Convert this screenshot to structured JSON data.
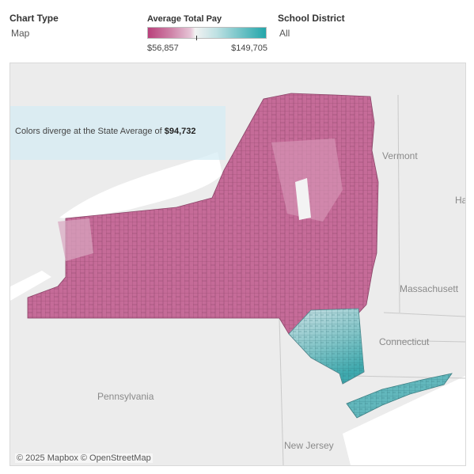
{
  "chart_type": {
    "title": "Chart Type",
    "value": "Map"
  },
  "legend": {
    "title": "Average Total Pay",
    "min_label": "$56,857",
    "max_label": "$149,705",
    "min": 56857,
    "max": 149705,
    "midpoint": 94732,
    "colors": {
      "low": "#b9407b",
      "mid": "#f2f2f2",
      "high": "#24a6aa"
    }
  },
  "school_district": {
    "title": "School District",
    "value": "All"
  },
  "map": {
    "callout_prefix": "Colors diverge at the State Average of ",
    "callout_value": "$94,732",
    "labels": {
      "vermont": "Vermont",
      "massachusetts": "Massachusett",
      "connecticut": "Connecticut",
      "pennsylvania": "Pennsylvania",
      "new_jersey": "New Jersey",
      "ham": "Ham"
    },
    "attribution": "© 2025 Mapbox © OpenStreetMap"
  }
}
